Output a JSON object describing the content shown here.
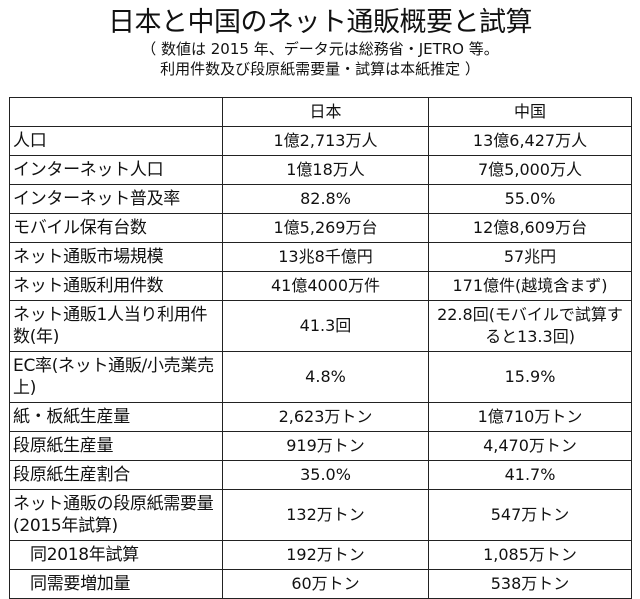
{
  "title": "日本と中国のネット通販概要と試算",
  "subtitle_line1": "（ 数値は 2015 年、データ元は総務省・JETRO 等。",
  "subtitle_line2": "利用件数及び段原紙需要量・試算は本紙推定 ）",
  "table": {
    "headers": [
      "",
      "日本",
      "中国"
    ],
    "rows": [
      {
        "label": "人口",
        "japan": "1億2,713万人",
        "china": "13億6,427万人"
      },
      {
        "label": "インターネット人口",
        "japan": "1億18万人",
        "china": "7億5,000万人"
      },
      {
        "label": "インターネット普及率",
        "japan": "82.8%",
        "china": "55.0%"
      },
      {
        "label": "モバイル保有台数",
        "japan": "1億5,269万台",
        "china": "12億8,609万台"
      },
      {
        "label": "ネット通販市場規模",
        "japan": "13兆8千億円",
        "china": "57兆円"
      },
      {
        "label": "ネット通販利用件数",
        "japan": "41億4000万件",
        "china": "171億件(越境含まず)"
      },
      {
        "label": "ネット通販1人当り利用件数(年)",
        "japan": "41.3回",
        "china": "22.8回(モバイルで試算すると13.3回)"
      },
      {
        "label": "EC率(ネット通販/小売業売上)",
        "japan": "4.8%",
        "china": "15.9%"
      },
      {
        "label": "紙・板紙生産量",
        "japan": "2,623万トン",
        "china": "1億710万トン"
      },
      {
        "label": "段原紙生産量",
        "japan": "919万トン",
        "china": "4,470万トン"
      },
      {
        "label": "段原紙生産割合",
        "japan": "35.0%",
        "china": "41.7%"
      },
      {
        "label": "ネット通販の段原紙需要量(2015年試算)",
        "japan": "132万トン",
        "china": "547万トン"
      },
      {
        "label": "同2018年試算",
        "japan": "192万トン",
        "china": "1,085万トン"
      },
      {
        "label": "同需要増加量",
        "japan": "60万トン",
        "china": "538万トン"
      }
    ]
  }
}
